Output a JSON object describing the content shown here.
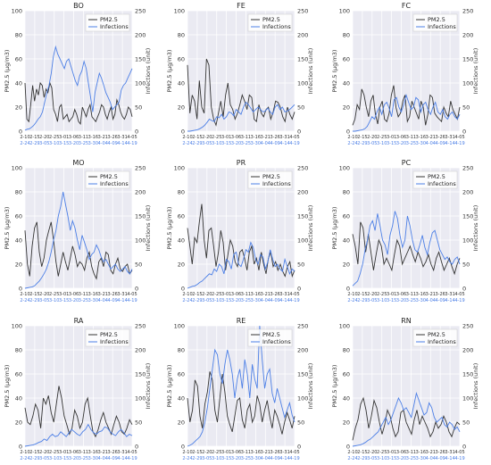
{
  "colors": {
    "pm25": "#333333",
    "infections": "#4c7fe6",
    "panel_bg": "#eaeaf2",
    "grid": "#ffffff",
    "tick_text": "#333333"
  },
  "legend": {
    "pm25_label": "PM2.5",
    "infections_label": "Infections"
  },
  "axes": {
    "left_label": "PM2.5 (μg/m3)",
    "right_label": "Infections (unit)",
    "left_ticks": [
      "0",
      "20",
      "40",
      "60",
      "80",
      "100"
    ],
    "right_ticks": [
      "0",
      "50",
      "100",
      "150",
      "200",
      "250"
    ],
    "x_ticks_pm25": [
      "2-10",
      "2-15",
      "2-20",
      "2-25",
      "3-01",
      "3-06",
      "3-11",
      "3-16",
      "3-21",
      "3-26",
      "3-31",
      "4-05"
    ],
    "x_ticks_infections": [
      "2-24",
      "2-29",
      "3-05",
      "3-10",
      "3-15",
      "3-20",
      "3-25",
      "3-30",
      "4-04",
      "4-09",
      "4-14",
      "4-19"
    ]
  },
  "chart_data": [
    {
      "type": "line",
      "title": "BO",
      "ylim_left": [
        0,
        100
      ],
      "ylim_right": [
        0,
        250
      ],
      "series": [
        {
          "name": "PM2.5",
          "axis": "left",
          "values": [
            40,
            10,
            8,
            22,
            38,
            25,
            35,
            30,
            40,
            38,
            28,
            35,
            32,
            40,
            36,
            18,
            14,
            8,
            20,
            22,
            10,
            12,
            14,
            8,
            10,
            12,
            18,
            14,
            8,
            6,
            20,
            16,
            12,
            18,
            22,
            12,
            10,
            8,
            12,
            16,
            22,
            20,
            14,
            10,
            16,
            20,
            10,
            14,
            26,
            22,
            16,
            12,
            10,
            14,
            20,
            18,
            12
          ]
        },
        {
          "name": "Infections",
          "axis": "right",
          "values": [
            2,
            4,
            5,
            8,
            12,
            18,
            25,
            30,
            40,
            60,
            80,
            95,
            120,
            155,
            175,
            160,
            150,
            140,
            130,
            145,
            150,
            135,
            120,
            105,
            95,
            115,
            125,
            145,
            130,
            100,
            70,
            40,
            80,
            100,
            120,
            110,
            95,
            80,
            70,
            60,
            45,
            50,
            55,
            60,
            85,
            95,
            100,
            110,
            120,
            130
          ]
        }
      ]
    },
    {
      "type": "line",
      "title": "FE",
      "ylim_left": [
        0,
        100
      ],
      "ylim_right": [
        0,
        250
      ],
      "series": [
        {
          "name": "PM2.5",
          "axis": "left",
          "values": [
            55,
            15,
            30,
            25,
            10,
            42,
            20,
            15,
            60,
            55,
            20,
            10,
            5,
            15,
            25,
            12,
            30,
            40,
            22,
            18,
            10,
            15,
            22,
            30,
            25,
            18,
            30,
            28,
            10,
            8,
            22,
            15,
            12,
            18,
            20,
            10,
            16,
            25,
            24,
            20,
            12,
            8,
            20,
            14,
            10,
            16
          ]
        },
        {
          "name": "Infections",
          "axis": "right",
          "values": [
            0,
            0,
            1,
            2,
            3,
            5,
            8,
            12,
            18,
            25,
            22,
            20,
            30,
            28,
            35,
            25,
            30,
            40,
            38,
            32,
            45,
            40,
            35,
            50,
            60,
            55,
            48,
            40,
            45,
            50,
            45,
            40,
            42,
            48,
            40,
            35,
            50,
            55,
            45,
            50,
            40,
            42,
            45,
            50,
            55
          ]
        }
      ]
    },
    {
      "type": "line",
      "title": "FC",
      "ylim_left": [
        0,
        100
      ],
      "ylim_right": [
        0,
        250
      ],
      "series": [
        {
          "name": "PM2.5",
          "axis": "left",
          "values": [
            5,
            10,
            22,
            18,
            35,
            30,
            20,
            12,
            25,
            30,
            14,
            6,
            20,
            25,
            10,
            8,
            15,
            30,
            38,
            20,
            12,
            15,
            25,
            30,
            8,
            12,
            25,
            20,
            15,
            10,
            25,
            20,
            5,
            14,
            30,
            28,
            15,
            12,
            10,
            8,
            20,
            15,
            12,
            25,
            18,
            14,
            10,
            20
          ]
        },
        {
          "name": "Infections",
          "axis": "right",
          "values": [
            0,
            0,
            1,
            2,
            3,
            5,
            10,
            20,
            30,
            25,
            40,
            50,
            35,
            55,
            60,
            48,
            30,
            65,
            70,
            50,
            40,
            55,
            75,
            60,
            45,
            50,
            70,
            65,
            40,
            55,
            60,
            45,
            35,
            50,
            60,
            40,
            35,
            45,
            30,
            25,
            35,
            40,
            30,
            25,
            35
          ]
        }
      ]
    },
    {
      "type": "line",
      "title": "MO",
      "ylim_left": [
        0,
        100
      ],
      "ylim_right": [
        0,
        250
      ],
      "series": [
        {
          "name": "PM2.5",
          "axis": "left",
          "values": [
            48,
            20,
            10,
            35,
            50,
            55,
            30,
            18,
            25,
            40,
            48,
            55,
            40,
            22,
            10,
            20,
            30,
            22,
            15,
            25,
            35,
            28,
            18,
            22,
            20,
            15,
            25,
            30,
            18,
            12,
            8,
            22,
            25,
            18,
            30,
            28,
            15,
            12,
            20,
            25,
            16,
            14,
            18,
            20,
            12,
            15
          ]
        },
        {
          "name": "Infections",
          "axis": "right",
          "values": [
            0,
            1,
            2,
            3,
            5,
            10,
            15,
            22,
            30,
            40,
            55,
            75,
            100,
            120,
            150,
            170,
            200,
            175,
            150,
            120,
            140,
            125,
            100,
            80,
            110,
            95,
            80,
            60,
            70,
            75,
            90,
            80,
            65,
            55,
            60,
            50,
            40,
            45,
            50,
            40,
            35,
            40,
            45,
            35,
            30,
            40
          ]
        }
      ]
    },
    {
      "type": "line",
      "title": "PR",
      "ylim_left": [
        0,
        100
      ],
      "ylim_right": [
        0,
        250
      ],
      "series": [
        {
          "name": "PM2.5",
          "axis": "left",
          "values": [
            50,
            35,
            20,
            42,
            38,
            55,
            70,
            40,
            25,
            48,
            50,
            35,
            18,
            30,
            48,
            38,
            15,
            28,
            40,
            35,
            22,
            18,
            30,
            32,
            25,
            15,
            30,
            35,
            20,
            25,
            15,
            30,
            20,
            12,
            25,
            30,
            18,
            22,
            15,
            20,
            14,
            10,
            18,
            22,
            10,
            15
          ]
        },
        {
          "name": "Infections",
          "axis": "right",
          "values": [
            0,
            2,
            4,
            5,
            8,
            12,
            15,
            20,
            25,
            30,
            28,
            40,
            35,
            50,
            45,
            30,
            60,
            55,
            40,
            70,
            75,
            50,
            45,
            60,
            80,
            75,
            95,
            85,
            60,
            50,
            70,
            65,
            40,
            55,
            80,
            60,
            45,
            50,
            40,
            35,
            60,
            45,
            30,
            40,
            35
          ]
        }
      ]
    },
    {
      "type": "line",
      "title": "PC",
      "ylim_left": [
        0,
        100
      ],
      "ylim_right": [
        0,
        250
      ],
      "series": [
        {
          "name": "PM2.5",
          "axis": "left",
          "values": [
            45,
            35,
            20,
            55,
            50,
            30,
            45,
            30,
            15,
            28,
            40,
            35,
            20,
            25,
            20,
            15,
            28,
            40,
            35,
            20,
            25,
            30,
            35,
            28,
            22,
            30,
            25,
            18,
            22,
            28,
            20,
            15,
            25,
            30,
            22,
            15,
            20,
            25,
            18,
            12,
            20,
            25
          ]
        },
        {
          "name": "Infections",
          "axis": "right",
          "values": [
            5,
            10,
            15,
            30,
            50,
            80,
            100,
            130,
            140,
            120,
            155,
            130,
            100,
            90,
            70,
            110,
            130,
            160,
            145,
            110,
            85,
            100,
            150,
            130,
            100,
            80,
            75,
            90,
            110,
            85,
            70,
            95,
            115,
            120,
            100,
            80,
            70,
            60,
            65,
            55,
            50,
            60,
            65,
            50
          ]
        }
      ]
    },
    {
      "type": "line",
      "title": "RA",
      "ylim_left": [
        0,
        100
      ],
      "ylim_right": [
        0,
        250
      ],
      "series": [
        {
          "name": "PM2.5",
          "axis": "left",
          "values": [
            32,
            20,
            18,
            25,
            35,
            30,
            15,
            40,
            35,
            42,
            28,
            20,
            35,
            50,
            40,
            25,
            18,
            10,
            15,
            30,
            25,
            15,
            20,
            35,
            40,
            25,
            12,
            8,
            14,
            22,
            28,
            20,
            15,
            10,
            18,
            25,
            20,
            12,
            10,
            15,
            22,
            18
          ]
        },
        {
          "name": "Infections",
          "axis": "right",
          "values": [
            0,
            1,
            2,
            3,
            5,
            8,
            10,
            15,
            12,
            20,
            25,
            20,
            22,
            30,
            25,
            20,
            28,
            35,
            30,
            25,
            22,
            30,
            35,
            45,
            35,
            28,
            25,
            30,
            32,
            40,
            38,
            30,
            25,
            22,
            30,
            35,
            28,
            20,
            25,
            22
          ]
        }
      ]
    },
    {
      "type": "line",
      "title": "RE",
      "ylim_left": [
        0,
        100
      ],
      "ylim_right": [
        0,
        250
      ],
      "series": [
        {
          "name": "PM2.5",
          "axis": "left",
          "values": [
            40,
            20,
            30,
            55,
            50,
            25,
            15,
            35,
            45,
            62,
            55,
            30,
            20,
            40,
            60,
            45,
            25,
            18,
            12,
            25,
            38,
            40,
            22,
            15,
            30,
            35,
            20,
            25,
            42,
            35,
            20,
            30,
            38,
            25,
            15,
            30,
            25,
            18,
            10,
            20,
            28,
            22,
            15,
            25
          ]
        },
        {
          "name": "Infections",
          "axis": "right",
          "values": [
            0,
            2,
            5,
            10,
            15,
            20,
            30,
            50,
            80,
            120,
            160,
            200,
            190,
            150,
            130,
            170,
            200,
            180,
            150,
            100,
            140,
            160,
            120,
            180,
            150,
            100,
            170,
            140,
            120,
            250,
            180,
            120,
            150,
            160,
            110,
            90,
            120,
            100,
            80,
            60,
            75,
            90,
            65,
            50
          ]
        }
      ]
    },
    {
      "type": "line",
      "title": "RN",
      "ylim_left": [
        0,
        100
      ],
      "ylim_right": [
        0,
        250
      ],
      "series": [
        {
          "name": "PM2.5",
          "axis": "left",
          "values": [
            5,
            15,
            22,
            35,
            40,
            30,
            15,
            25,
            38,
            32,
            20,
            10,
            18,
            30,
            25,
            15,
            8,
            12,
            28,
            30,
            20,
            15,
            10,
            22,
            30,
            18,
            25,
            20,
            15,
            8,
            12,
            20,
            15,
            18,
            25,
            20,
            12,
            8,
            15,
            20,
            18
          ]
        },
        {
          "name": "Infections",
          "axis": "right",
          "values": [
            0,
            1,
            2,
            3,
            5,
            8,
            12,
            15,
            20,
            25,
            30,
            40,
            50,
            60,
            45,
            55,
            70,
            85,
            100,
            90,
            75,
            80,
            70,
            60,
            85,
            110,
            95,
            80,
            65,
            70,
            90,
            80,
            60,
            50,
            55,
            60,
            45,
            40,
            50,
            45,
            35,
            40,
            30
          ]
        }
      ]
    }
  ]
}
